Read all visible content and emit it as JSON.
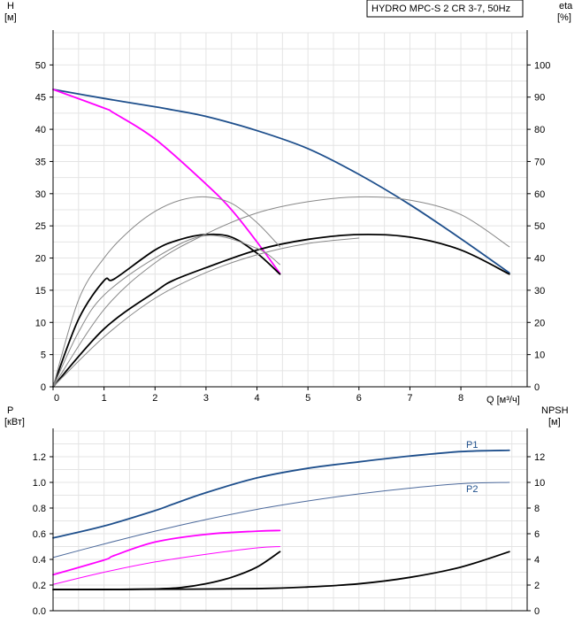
{
  "title_box": "HYDRO MPC-S 2 CR 3-7, 50Hz",
  "chart_data": [
    {
      "type": "line",
      "panel": "head",
      "left_axis_label": "H",
      "left_axis_unit": "[м]",
      "right_axis_label": "eta",
      "right_axis_unit": "[%]",
      "x_axis_label": "Q [м³/ч]",
      "xlim": [
        0,
        9.3
      ],
      "ylim": [
        0,
        55
      ],
      "y2lim": [
        0,
        110
      ],
      "xticks": [
        0,
        1,
        2,
        3,
        4,
        5,
        6,
        7,
        8
      ],
      "yticks": [
        0,
        5,
        10,
        15,
        20,
        25,
        30,
        35,
        40,
        45,
        50
      ],
      "y2ticks": [
        0,
        10,
        20,
        30,
        40,
        50,
        60,
        70,
        80,
        90,
        100
      ],
      "grid": true,
      "series": [
        {
          "axis": "left",
          "color": "#1e4f8c",
          "width": 1.8,
          "x": [
            0,
            1,
            2,
            2.35,
            3,
            4,
            5,
            6,
            7,
            8,
            8.95
          ],
          "y": [
            46.2,
            44.8,
            43.5,
            43.0,
            42.0,
            39.8,
            37.0,
            33.0,
            28.3,
            23.0,
            17.7
          ]
        },
        {
          "axis": "left",
          "color": "#ff00ff",
          "width": 1.8,
          "x": [
            0,
            1,
            1.2,
            2,
            3,
            3.5,
            4,
            4.45
          ],
          "y": [
            46.2,
            43.3,
            42.5,
            38.5,
            31.5,
            27.5,
            22.5,
            17.6
          ]
        },
        {
          "axis": "right",
          "color": "#000000",
          "width": 1.8,
          "x": [
            0,
            0.5,
            1,
            1.2,
            2,
            2.5,
            3,
            3.5,
            4,
            4.45
          ],
          "y": [
            0,
            21,
            33,
            33.5,
            42.5,
            45.8,
            47.3,
            46.5,
            41.5,
            35
          ]
        },
        {
          "axis": "right",
          "color": "#000000",
          "width": 1.8,
          "x": [
            0,
            1,
            2,
            2.35,
            3,
            4,
            5,
            6,
            7,
            8,
            8.95
          ],
          "y": [
            0,
            18,
            29.5,
            33,
            37,
            42.5,
            45.8,
            47.3,
            46.5,
            42.5,
            35
          ]
        },
        {
          "axis": "right",
          "color": "#888888",
          "width": 1,
          "x": [
            0,
            0.5,
            1,
            1.5,
            2,
            2.5,
            3,
            3.5,
            4,
            4.45
          ],
          "y": [
            0,
            27,
            40,
            48.5,
            54.5,
            58,
            59,
            57,
            51,
            43.5
          ]
        },
        {
          "axis": "right",
          "color": "#888888",
          "width": 1,
          "x": [
            0,
            1,
            2,
            3,
            4,
            5,
            6,
            7,
            8,
            8.95
          ],
          "y": [
            0,
            24,
            38.5,
            47.5,
            54,
            57.5,
            59,
            58,
            53.5,
            43.5
          ]
        },
        {
          "axis": "right",
          "color": "#888888",
          "width": 1,
          "x": [
            0,
            0.5,
            1,
            2,
            3,
            4,
            4.45
          ],
          "y": [
            0,
            17,
            28.5,
            40,
            47,
            43,
            38
          ]
        },
        {
          "axis": "right",
          "color": "#888888",
          "width": 1,
          "x": [
            0,
            1,
            2,
            3,
            4,
            5,
            6
          ],
          "y": [
            0,
            15.5,
            27.5,
            35.5,
            41,
            44.5,
            46.2
          ]
        }
      ]
    },
    {
      "type": "line",
      "panel": "power",
      "left_axis_label": "P",
      "left_axis_unit": "[кВт]",
      "right_axis_label": "NPSH",
      "right_axis_unit": "[м]",
      "xlim": [
        0,
        9.3
      ],
      "ylim": [
        0,
        1.4
      ],
      "y2lim": [
        0,
        14
      ],
      "yticks": [
        "0.0",
        "0.2",
        "0.4",
        "0.6",
        "0.8",
        "1.0",
        "1.2"
      ],
      "y2ticks": [
        0,
        2,
        4,
        6,
        8,
        10,
        12
      ],
      "grid": true,
      "series": [
        {
          "name": "P1",
          "axis": "left",
          "color": "#1e4f8c",
          "width": 1.8,
          "label_color": "#1e4f8c",
          "x": [
            0,
            1,
            2,
            2.35,
            3,
            4,
            5,
            6,
            7,
            8,
            8.95
          ],
          "y": [
            0.567,
            0.66,
            0.78,
            0.83,
            0.92,
            1.035,
            1.11,
            1.16,
            1.205,
            1.24,
            1.25
          ]
        },
        {
          "name": "P2",
          "axis": "left",
          "color": "#4d6a9c",
          "width": 1,
          "label_color": "#1e4f8c",
          "x": [
            0,
            1,
            2,
            3,
            4,
            5,
            6,
            7,
            8,
            8.95
          ],
          "y": [
            0.415,
            0.52,
            0.62,
            0.71,
            0.79,
            0.855,
            0.91,
            0.955,
            0.99,
            1.0
          ]
        },
        {
          "axis": "left",
          "color": "#ff00ff",
          "width": 1.8,
          "x": [
            0,
            1,
            1.2,
            2,
            3,
            4,
            4.45
          ],
          "y": [
            0.28,
            0.395,
            0.43,
            0.535,
            0.595,
            0.62,
            0.625
          ]
        },
        {
          "axis": "left",
          "color": "#ff00ff",
          "width": 1,
          "x": [
            0,
            1,
            2,
            3,
            4,
            4.45
          ],
          "y": [
            0.205,
            0.3,
            0.38,
            0.44,
            0.49,
            0.5
          ]
        },
        {
          "axis": "right",
          "color": "#000000",
          "width": 1.8,
          "x": [
            0,
            1,
            2,
            2.5,
            3,
            3.5,
            4,
            4.45
          ],
          "y": [
            1.65,
            1.65,
            1.7,
            1.8,
            2.1,
            2.6,
            3.4,
            4.6
          ]
        },
        {
          "axis": "right",
          "color": "#000000",
          "width": 1.8,
          "x": [
            0,
            2,
            4,
            5,
            6,
            7,
            8,
            8.95
          ],
          "y": [
            1.65,
            1.67,
            1.72,
            1.85,
            2.1,
            2.6,
            3.4,
            4.6
          ]
        }
      ]
    }
  ]
}
